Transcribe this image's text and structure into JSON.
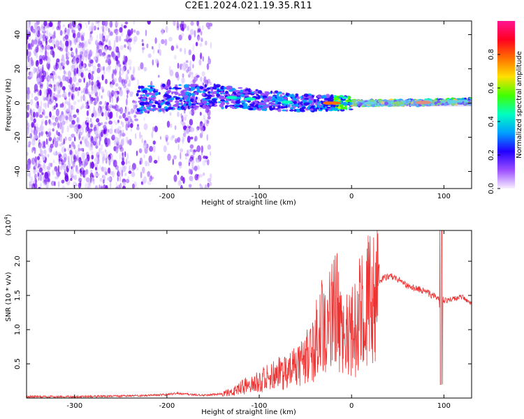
{
  "title": "C2E1.2024.021.19.35.R11",
  "chart_data": [
    {
      "type": "heatmap",
      "xlabel": "Height of straight line (km)",
      "ylabel": "Frequency (Hz)",
      "xlim": [
        -352,
        130
      ],
      "ylim": [
        -50,
        48
      ],
      "xticks": [
        -300,
        -200,
        -100,
        0,
        100
      ],
      "yticks": [
        -40,
        -20,
        0,
        20,
        40
      ],
      "colorbar": {
        "label": "Normalized spectral amplitude",
        "ticks": [
          "0.0",
          "0.2",
          "0.4",
          "0.6",
          "0.8"
        ],
        "range": [
          0,
          1
        ],
        "colormap": [
          "#ffffff",
          "#7b00ff",
          "#0000ff",
          "#00c8ff",
          "#00ff00",
          "#ffff00",
          "#ff8000",
          "#ff0000",
          "#ff1493"
        ]
      },
      "ridge_center_hz": [
        {
          "x": -230,
          "y": 2
        },
        {
          "x": -200,
          "y": 3
        },
        {
          "x": -150,
          "y": 4
        },
        {
          "x": -100,
          "y": 2
        },
        {
          "x": -60,
          "y": 0
        },
        {
          "x": -30,
          "y": 0
        },
        {
          "x": 0,
          "y": 0
        },
        {
          "x": 50,
          "y": 0
        },
        {
          "x": 130,
          "y": 1
        }
      ]
    },
    {
      "type": "line",
      "xlabel": "Height of straight line (km)",
      "ylabel": "SNR (10 * v/v)",
      "yscale_label": "(x10",
      "yscale_exp": "4",
      "yscale_close": ")",
      "xlim": [
        -352,
        130
      ],
      "ylim": [
        0,
        2.45
      ],
      "xticks": [
        -300,
        -200,
        -100,
        0,
        100
      ],
      "yticks": [
        "0.5",
        "1.0",
        "1.5",
        "2.0"
      ],
      "color": "#ee3333",
      "series": [
        {
          "x": [
            -352,
            -300,
            -250,
            -200,
            -190,
            -180,
            -160,
            -140,
            -130,
            -120,
            -110,
            -100,
            -90,
            -80,
            -70,
            -60,
            -50,
            -40,
            -30,
            -20,
            -15,
            -10,
            -5,
            0,
            5,
            10,
            15,
            20,
            25,
            30,
            35,
            40,
            45,
            50,
            55,
            60,
            65,
            70,
            75,
            80,
            85,
            90,
            95,
            97,
            99,
            100,
            105,
            110,
            115,
            120,
            125,
            130
          ],
          "y": [
            0.02,
            0.02,
            0.03,
            0.05,
            0.07,
            0.06,
            0.04,
            0.06,
            0.1,
            0.15,
            0.2,
            0.25,
            0.3,
            0.35,
            0.4,
            0.45,
            0.55,
            0.8,
            1.1,
            1.3,
            1.25,
            0.9,
            0.9,
            0.95,
            1.0,
            1.1,
            1.3,
            1.5,
            1.65,
            1.72,
            1.75,
            1.77,
            1.78,
            1.73,
            1.7,
            1.65,
            1.62,
            1.6,
            1.58,
            1.55,
            1.52,
            1.48,
            1.45,
            0.4,
            1.45,
            1.42,
            1.44,
            1.45,
            1.46,
            1.48,
            1.42,
            1.38
          ]
        }
      ]
    }
  ]
}
